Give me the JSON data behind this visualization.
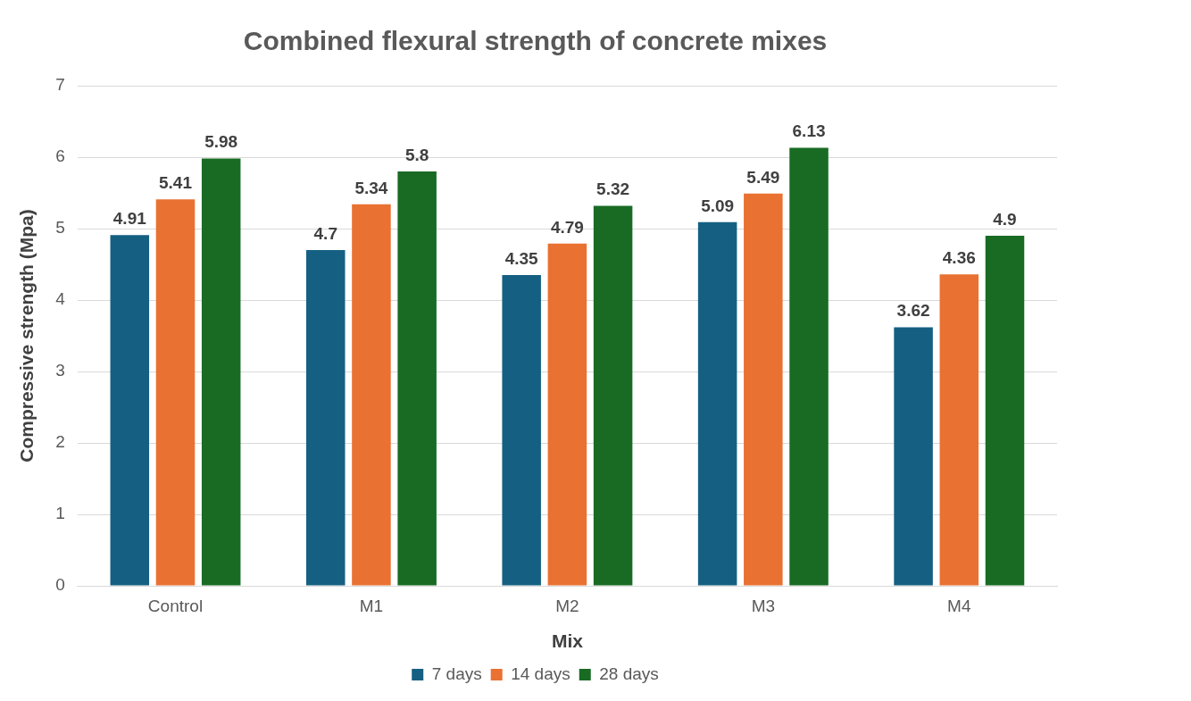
{
  "chart_data": {
    "type": "bar",
    "title": "Combined flexural strength of concrete mixes",
    "xlabel": "Mix",
    "ylabel": "Compressive strength (Mpa)",
    "categories": [
      "Control",
      "M1",
      "M2",
      "M3",
      "M4"
    ],
    "series": [
      {
        "name": "7 days",
        "color": "#156082",
        "values": [
          4.91,
          4.7,
          4.35,
          5.09,
          3.62
        ]
      },
      {
        "name": "14 days",
        "color": "#e97132",
        "values": [
          5.41,
          5.34,
          4.79,
          5.49,
          4.36
        ]
      },
      {
        "name": "28 days",
        "color": "#196b24",
        "values": [
          5.98,
          5.8,
          5.32,
          6.13,
          4.9
        ]
      }
    ],
    "ylim": [
      0,
      7
    ],
    "yticks": [
      0,
      1,
      2,
      3,
      4,
      5,
      6,
      7
    ],
    "grid": "y",
    "legend": "bottom",
    "data_labels": true
  }
}
